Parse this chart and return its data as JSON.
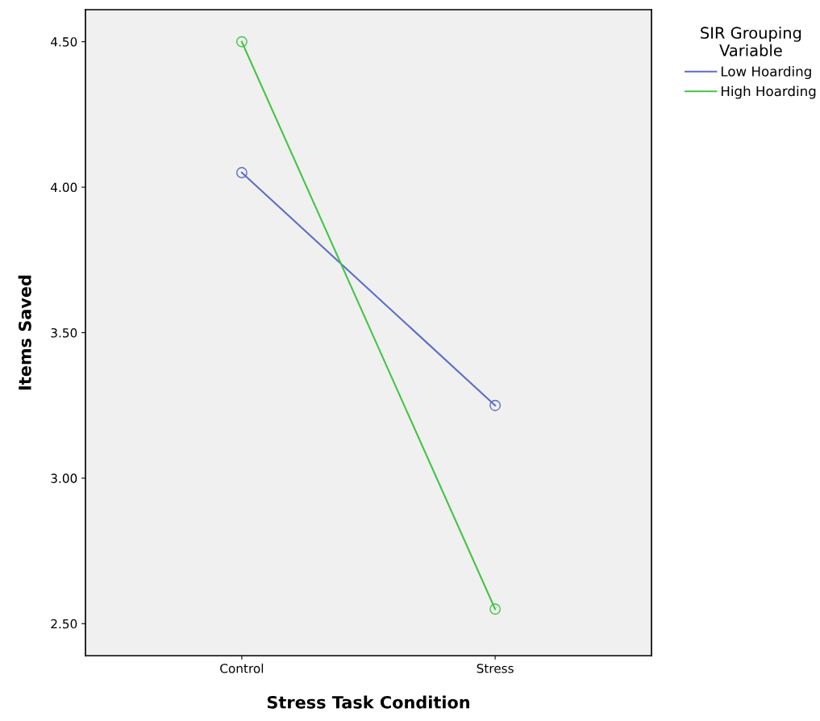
{
  "chart_data": {
    "type": "line",
    "xlabel": "Stress Task Condition",
    "ylabel": "Items Saved",
    "categories": [
      "Control",
      "Stress"
    ],
    "series": [
      {
        "name": "Low Hoarding",
        "color": "#5b6dc8",
        "values": [
          4.05,
          3.25
        ]
      },
      {
        "name": "High Hoarding",
        "color": "#45c445",
        "values": [
          4.5,
          2.55
        ]
      }
    ],
    "legend_title": "SIR Grouping\nVariable",
    "legend": "right",
    "marker": "circle",
    "ylim": [
      2.39,
      4.61
    ],
    "yticks": [
      {
        "value": 2.5,
        "label": "2.50"
      },
      {
        "value": 3.0,
        "label": "3.00"
      },
      {
        "value": 3.5,
        "label": "3.50"
      },
      {
        "value": 4.0,
        "label": "4.00"
      },
      {
        "value": 4.5,
        "label": "4.50"
      }
    ],
    "grid": false
  }
}
